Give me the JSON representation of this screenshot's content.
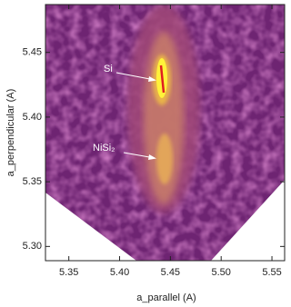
{
  "chart_data": {
    "type": "contour",
    "x_label": "a_parallel (A)",
    "y_label": "a_perpendicular (A)",
    "xlim": [
      5.327,
      5.5625
    ],
    "ylim": [
      5.289,
      5.487
    ],
    "xticks": [
      {
        "value": 5.35,
        "label": "5.35"
      },
      {
        "value": 5.4,
        "label": "5.40"
      },
      {
        "value": 5.45,
        "label": "5.45"
      },
      {
        "value": 5.5,
        "label": "5.50"
      },
      {
        "value": 5.55,
        "label": "5.55"
      }
    ],
    "yticks": [
      {
        "value": 5.3,
        "label": "5.30"
      },
      {
        "value": 5.35,
        "label": "5.35"
      },
      {
        "value": 5.4,
        "label": "5.40"
      },
      {
        "value": 5.45,
        "label": "5.45"
      }
    ],
    "annotations": [
      "Si",
      "NiSi₂"
    ]
  }
}
